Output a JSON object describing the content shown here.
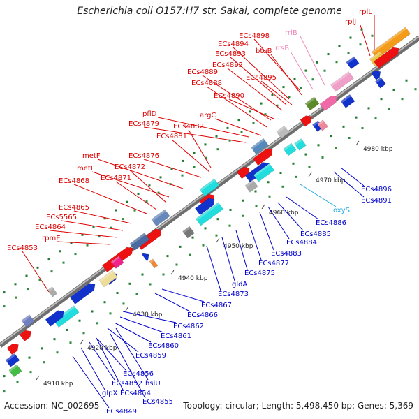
{
  "title": "Escherichia coli O157:H7 str. Sakai, complete genome",
  "accession_text": "Accession: NC_002695",
  "info_text": "Topology: circular; Length: 5,498,450 bp; Genes: 5,369",
  "colors": {
    "forward_label": "#dd0000",
    "reverse_label": "#0000cc",
    "rrna_label": "#ee88bb",
    "light_blue_label": "#22aadd",
    "backbone": "#888888"
  },
  "ticks": [
    "4910 kbp",
    "4920 kbp",
    "4930 kbp",
    "4940 kbp",
    "4950 kbp",
    "4960 kbp",
    "4970 kbp",
    "4980 kbp"
  ],
  "labels_forward": [
    "rplL",
    "rplJ",
    "ECs4898",
    "rrlB",
    "rrsB",
    "ECs4894",
    "btuB",
    "ECs4893",
    "ECs4892",
    "ECs4895",
    "ECs4889",
    "ECs4888",
    "ECs4890",
    "pflD",
    "argC",
    "ECs4879",
    "ECs4882",
    "ECs4881",
    "ECs4876",
    "metF",
    "ECs4872",
    "metL",
    "ECs4871",
    "ECs4868",
    "ECs4865",
    "ECs5565",
    "ECs4864",
    "rpmE",
    "ECs4853"
  ],
  "labels_reverse": [
    "ECs4896",
    "ECs4891",
    "oxyS",
    "ECs4886",
    "ECs4885",
    "ECs4884",
    "ECs4883",
    "ECs4877",
    "ECs4875",
    "gldA",
    "ECs4873",
    "ECs4867",
    "ECs4866",
    "ECs4862",
    "ECs4861",
    "ECs4860",
    "ECs4859",
    "ECs4856",
    "hslU",
    "ECs4852",
    "ECs4854",
    "glpX",
    "ECs4855",
    "ECs4849"
  ]
}
